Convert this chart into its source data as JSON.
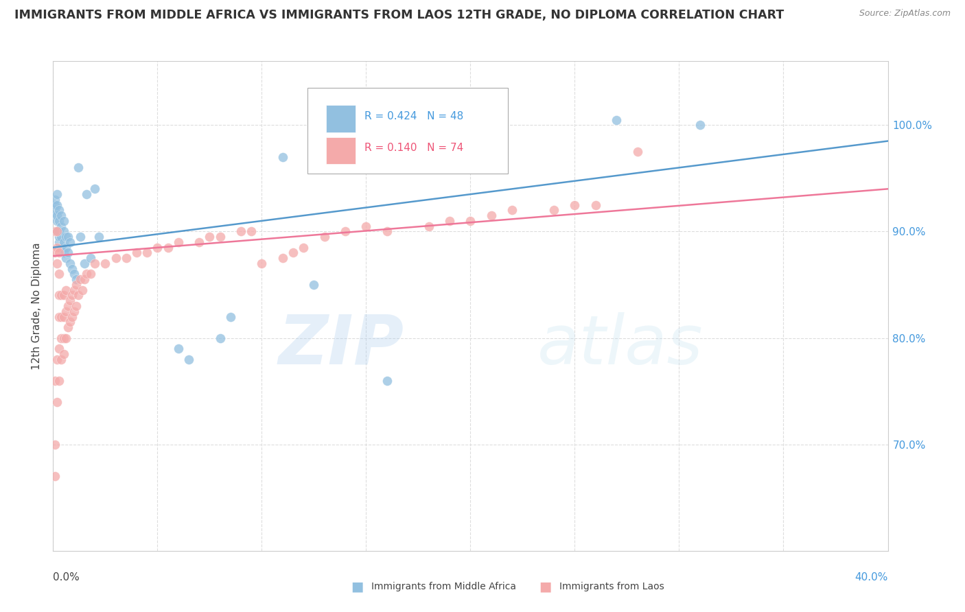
{
  "title": "IMMIGRANTS FROM MIDDLE AFRICA VS IMMIGRANTS FROM LAOS 12TH GRADE, NO DIPLOMA CORRELATION CHART",
  "source": "Source: ZipAtlas.com",
  "ylabel": "12th Grade, No Diploma",
  "ylabel_right_ticks": [
    "70.0%",
    "80.0%",
    "90.0%",
    "100.0%"
  ],
  "ylabel_right_vals": [
    0.7,
    0.8,
    0.9,
    1.0
  ],
  "legend_blue_r": "0.424",
  "legend_blue_n": "48",
  "legend_pink_r": "0.140",
  "legend_pink_n": "74",
  "blue_color": "#92C0E0",
  "pink_color": "#F4AAAA",
  "blue_line_color": "#5599CC",
  "pink_line_color": "#EE7799",
  "watermark_zip": "ZIP",
  "watermark_atlas": "atlas",
  "blue_scatter_x": [
    0.001,
    0.001,
    0.001,
    0.001,
    0.002,
    0.002,
    0.002,
    0.002,
    0.002,
    0.003,
    0.003,
    0.003,
    0.003,
    0.003,
    0.004,
    0.004,
    0.004,
    0.004,
    0.005,
    0.005,
    0.005,
    0.005,
    0.006,
    0.006,
    0.006,
    0.007,
    0.007,
    0.008,
    0.008,
    0.009,
    0.01,
    0.011,
    0.012,
    0.013,
    0.015,
    0.016,
    0.018,
    0.02,
    0.022,
    0.06,
    0.065,
    0.08,
    0.085,
    0.11,
    0.125,
    0.16,
    0.27,
    0.31
  ],
  "blue_scatter_y": [
    0.915,
    0.92,
    0.925,
    0.93,
    0.9,
    0.91,
    0.915,
    0.925,
    0.935,
    0.89,
    0.895,
    0.9,
    0.91,
    0.92,
    0.885,
    0.895,
    0.905,
    0.915,
    0.88,
    0.89,
    0.9,
    0.91,
    0.875,
    0.885,
    0.895,
    0.88,
    0.895,
    0.87,
    0.89,
    0.865,
    0.86,
    0.855,
    0.96,
    0.895,
    0.87,
    0.935,
    0.875,
    0.94,
    0.895,
    0.79,
    0.78,
    0.8,
    0.82,
    0.97,
    0.85,
    0.76,
    1.005,
    1.0
  ],
  "pink_scatter_x": [
    0.001,
    0.001,
    0.001,
    0.001,
    0.001,
    0.002,
    0.002,
    0.002,
    0.002,
    0.002,
    0.003,
    0.003,
    0.003,
    0.003,
    0.003,
    0.003,
    0.004,
    0.004,
    0.004,
    0.004,
    0.005,
    0.005,
    0.005,
    0.005,
    0.006,
    0.006,
    0.006,
    0.007,
    0.007,
    0.008,
    0.008,
    0.009,
    0.009,
    0.01,
    0.01,
    0.011,
    0.011,
    0.012,
    0.013,
    0.014,
    0.015,
    0.016,
    0.018,
    0.02,
    0.025,
    0.03,
    0.035,
    0.04,
    0.045,
    0.05,
    0.055,
    0.06,
    0.07,
    0.075,
    0.08,
    0.09,
    0.095,
    0.1,
    0.11,
    0.115,
    0.12,
    0.13,
    0.14,
    0.15,
    0.16,
    0.18,
    0.19,
    0.2,
    0.21,
    0.22,
    0.24,
    0.25,
    0.26,
    0.28
  ],
  "pink_scatter_y": [
    0.67,
    0.7,
    0.76,
    0.88,
    0.9,
    0.74,
    0.78,
    0.87,
    0.885,
    0.9,
    0.76,
    0.79,
    0.82,
    0.84,
    0.86,
    0.88,
    0.78,
    0.8,
    0.82,
    0.84,
    0.785,
    0.8,
    0.82,
    0.84,
    0.8,
    0.825,
    0.845,
    0.81,
    0.83,
    0.815,
    0.835,
    0.82,
    0.84,
    0.825,
    0.845,
    0.83,
    0.85,
    0.84,
    0.855,
    0.845,
    0.855,
    0.86,
    0.86,
    0.87,
    0.87,
    0.875,
    0.875,
    0.88,
    0.88,
    0.885,
    0.885,
    0.89,
    0.89,
    0.895,
    0.895,
    0.9,
    0.9,
    0.87,
    0.875,
    0.88,
    0.885,
    0.895,
    0.9,
    0.905,
    0.9,
    0.905,
    0.91,
    0.91,
    0.915,
    0.92,
    0.92,
    0.925,
    0.925,
    0.975
  ],
  "xmin": 0.0,
  "xmax": 0.4,
  "ymin": 0.6,
  "ymax": 1.06,
  "blue_trend_x": [
    0.0,
    0.4
  ],
  "blue_trend_y": [
    0.885,
    0.985
  ],
  "pink_trend_x": [
    0.0,
    0.4
  ],
  "pink_trend_y": [
    0.877,
    0.94
  ]
}
